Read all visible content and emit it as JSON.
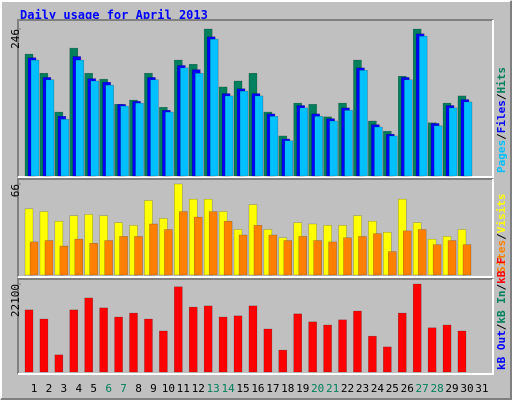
{
  "chart_data": [
    {
      "type": "bar",
      "title": "Daily usage for April 2013",
      "categories": [
        "1",
        "2",
        "3",
        "4",
        "5",
        "6",
        "7",
        "8",
        "9",
        "10",
        "11",
        "12",
        "13",
        "14",
        "15",
        "16",
        "17",
        "18",
        "19",
        "20",
        "21",
        "22",
        "23",
        "24",
        "25",
        "26",
        "27",
        "28",
        "29",
        "30",
        "31"
      ],
      "category_colors": [
        "#000000",
        "#000000",
        "#000000",
        "#000000",
        "#000000",
        "#00805c",
        "#00805c",
        "#000000",
        "#000000",
        "#000000",
        "#000000",
        "#000000",
        "#00805c",
        "#00805c",
        "#000000",
        "#000000",
        "#000000",
        "#000000",
        "#000000",
        "#00805c",
        "#00805c",
        "#000000",
        "#000000",
        "#000000",
        "#000000",
        "#000000",
        "#00805c",
        "#00805c",
        "#000000",
        "#000000",
        "#000000"
      ],
      "legend_separator": "/",
      "ylim": [
        0,
        246
      ],
      "yticks": [
        246
      ],
      "series": [
        {
          "name": "Hits",
          "color": "#00805c",
          "values": [
            204,
            172,
            107,
            214,
            172,
            162,
            120,
            127,
            172,
            115,
            194,
            187,
            246,
            149,
            159,
            172,
            107,
            67,
            122,
            120,
            99,
            122,
            194,
            92,
            75,
            167,
            246,
            89,
            122,
            134,
            null
          ]
        },
        {
          "name": "Files",
          "color": "#0000ff",
          "values": [
            198,
            165,
            100,
            200,
            163,
            157,
            120,
            125,
            165,
            110,
            185,
            178,
            233,
            138,
            146,
            138,
            104,
            62,
            118,
            104,
            96,
            114,
            181,
            86,
            70,
            165,
            238,
            88,
            118,
            128,
            null
          ]
        },
        {
          "name": "Pages",
          "color": "#00c0ff",
          "values": [
            194,
            161,
            95,
            194,
            159,
            152,
            117,
            122,
            161,
            107,
            181,
            172,
            229,
            134,
            142,
            134,
            100,
            59,
            114,
            100,
            92,
            110,
            177,
            82,
            67,
            161,
            234,
            84,
            114,
            124,
            null
          ]
        }
      ]
    },
    {
      "type": "bar",
      "ylim": [
        0,
        66
      ],
      "yticks": [
        66
      ],
      "series": [
        {
          "name": "Visits",
          "color": "#ffff00",
          "values": [
            48,
            46,
            39,
            43,
            44,
            43,
            38,
            36,
            54,
            41,
            66,
            55,
            55,
            46,
            33,
            51,
            33,
            27,
            38,
            37,
            36,
            36,
            43,
            39,
            31,
            55,
            38,
            26,
            28,
            33,
            null
          ]
        },
        {
          "name": "Sites",
          "color": "#ff8000",
          "values": [
            24,
            25,
            21,
            26,
            23,
            25,
            28,
            28,
            37,
            33,
            46,
            42,
            46,
            39,
            29,
            36,
            29,
            25,
            28,
            25,
            24,
            27,
            28,
            30,
            17,
            32,
            33,
            22,
            25,
            22,
            null
          ]
        }
      ]
    },
    {
      "type": "bar",
      "ylim": [
        0,
        22100
      ],
      "yticks": [
        22100
      ],
      "series": [
        {
          "name": "kB F",
          "color": "#ff0000",
          "values": [
            15600,
            13300,
            4300,
            15600,
            18600,
            16100,
            13800,
            14800,
            13300,
            10300,
            21400,
            16300,
            16600,
            13800,
            14100,
            16600,
            10800,
            5500,
            14600,
            12600,
            11800,
            13100,
            15300,
            9000,
            6300,
            14800,
            22100,
            11100,
            11800,
            10300,
            null
          ]
        },
        {
          "name": "kB In",
          "color": "#00805c"
        },
        {
          "name": "kB Out",
          "color": "#0000ff"
        }
      ]
    }
  ]
}
